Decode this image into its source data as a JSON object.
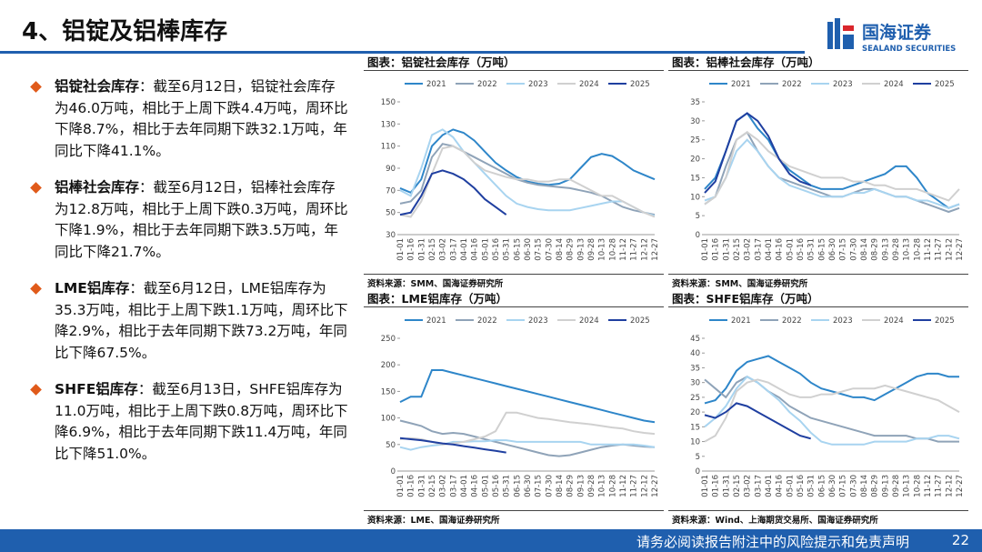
{
  "header": {
    "title": "4、铝锭及铝棒库存",
    "logo_cn": "国海证券",
    "logo_en": "SEALAND SECURITIES"
  },
  "bullets": [
    {
      "head": "铝锭社会库存",
      "body": "：截至6月12日，铝锭社会库存为46.0万吨，相比于上周下跌4.4万吨，周环比下降8.7%，相比于去年同期下跌32.1万吨，年同比下降41.1%。"
    },
    {
      "head": "铝棒社会库存",
      "body": "：截至6月12日，铝棒社会库存为12.8万吨，相比于上周下跌0.3万吨，周环比下降1.9%，相比于去年同期下跌3.5万吨，年同比下降21.7%。"
    },
    {
      "head": "LME铝库存",
      "body": "：截至6月12日，LME铝库存为35.3万吨，相比于上周下跌1.1万吨，周环比下降2.9%，相比于去年同期下跌73.2万吨，年同比下降67.5%。"
    },
    {
      "head": "SHFE铝库存",
      "body": "：截至6月13日，SHFE铝库存为11.0万吨，相比于上周下跌0.8万吨，周环比下降6.9%，相比于去年同期下跌11.4万吨，年同比下降51.0%。"
    }
  ],
  "footer": {
    "notice": "请务必阅读报告附注中的风险提示和免责声明",
    "page": "22"
  },
  "chart_data": [
    {
      "type": "line",
      "title": "图表：铝锭社会库存（万吨）",
      "source": "资料来源：SMM、国海证券研究所",
      "categories": [
        "01-01",
        "01-16",
        "01-31",
        "02-15",
        "03-02",
        "03-17",
        "04-01",
        "04-16",
        "05-01",
        "05-16",
        "05-31",
        "06-15",
        "06-30",
        "07-15",
        "07-30",
        "08-14",
        "08-29",
        "09-13",
        "09-28",
        "10-13",
        "10-28",
        "11-12",
        "11-27",
        "12-12",
        "12-27"
      ],
      "ylim": [
        30,
        150
      ],
      "yticks": [
        30,
        50,
        70,
        90,
        110,
        130,
        150
      ],
      "series": [
        {
          "name": "2021",
          "color": "#2e86c9",
          "values": [
            72,
            68,
            80,
            110,
            120,
            125,
            122,
            115,
            105,
            95,
            88,
            82,
            78,
            76,
            75,
            76,
            80,
            90,
            100,
            103,
            101,
            95,
            88,
            84,
            80
          ]
        },
        {
          "name": "2022",
          "color": "#8fa3b8",
          "values": [
            58,
            60,
            70,
            100,
            112,
            110,
            105,
            100,
            95,
            90,
            85,
            80,
            77,
            75,
            74,
            73,
            72,
            70,
            68,
            65,
            60,
            55,
            52,
            50,
            48
          ]
        },
        {
          "name": "2023",
          "color": "#a8d4f0",
          "values": [
            70,
            65,
            90,
            120,
            125,
            118,
            105,
            95,
            85,
            75,
            65,
            58,
            55,
            53,
            52,
            52,
            52,
            54,
            56,
            58,
            60,
            60,
            55,
            50,
            47
          ]
        },
        {
          "name": "2024",
          "color": "#d0d0d0",
          "values": [
            48,
            46,
            60,
            85,
            108,
            110,
            105,
            95,
            88,
            85,
            82,
            80,
            80,
            78,
            78,
            80,
            80,
            75,
            70,
            65,
            65,
            60,
            55,
            50,
            46
          ]
        },
        {
          "name": "2025",
          "color": "#1f3fa0",
          "values": [
            48,
            50,
            65,
            85,
            88,
            85,
            80,
            72,
            62,
            55,
            48,
            null,
            null,
            null,
            null,
            null,
            null,
            null,
            null,
            null,
            null,
            null,
            null,
            null,
            null
          ]
        }
      ]
    },
    {
      "type": "line",
      "title": "图表：铝棒社会库存（万吨）",
      "source": "资料来源：SMM、国海证券研究所",
      "categories": [
        "01-01",
        "01-16",
        "01-31",
        "02-15",
        "03-02",
        "03-17",
        "04-01",
        "04-16",
        "05-01",
        "05-16",
        "05-31",
        "06-15",
        "06-30",
        "07-15",
        "07-30",
        "08-14",
        "08-29",
        "09-13",
        "09-28",
        "10-13",
        "10-28",
        "11-12",
        "11-27",
        "12-12",
        "12-27"
      ],
      "ylim": [
        0,
        35
      ],
      "yticks": [
        0,
        5,
        10,
        15,
        20,
        25,
        30,
        35
      ],
      "series": [
        {
          "name": "2021",
          "color": "#2e86c9",
          "values": [
            12,
            15,
            22,
            30,
            32,
            28,
            25,
            20,
            17,
            15,
            13,
            12,
            12,
            12,
            13,
            14,
            15,
            16,
            18,
            18,
            15,
            11,
            9,
            7,
            8
          ]
        },
        {
          "name": "2022",
          "color": "#8fa3b8",
          "values": [
            8,
            10,
            18,
            25,
            27,
            22,
            18,
            15,
            14,
            13,
            12,
            11,
            10,
            10,
            11,
            12,
            12,
            11,
            10,
            10,
            9,
            8,
            7,
            6,
            7
          ]
        },
        {
          "name": "2023",
          "color": "#a8d4f0",
          "values": [
            9,
            10,
            15,
            22,
            25,
            22,
            18,
            15,
            13,
            12,
            11,
            10,
            10,
            10,
            11,
            11,
            12,
            11,
            10,
            10,
            9,
            9,
            8,
            7,
            8
          ]
        },
        {
          "name": "2024",
          "color": "#d0d0d0",
          "values": [
            8,
            10,
            15,
            25,
            27,
            25,
            22,
            20,
            18,
            17,
            16,
            15,
            15,
            15,
            14,
            14,
            13,
            13,
            12,
            12,
            12,
            11,
            10,
            9,
            12
          ]
        },
        {
          "name": "2025",
          "color": "#1f3fa0",
          "values": [
            11,
            14,
            22,
            30,
            32,
            30,
            26,
            20,
            16,
            14,
            13,
            null,
            null,
            null,
            null,
            null,
            null,
            null,
            null,
            null,
            null,
            null,
            null,
            null,
            null
          ]
        }
      ]
    },
    {
      "type": "line",
      "title": "图表：LME铝库存（万吨）",
      "source": "资料来源：LME、国海证券研究所",
      "categories": [
        "01-01",
        "01-16",
        "01-31",
        "02-15",
        "03-02",
        "03-17",
        "04-01",
        "04-16",
        "05-01",
        "05-16",
        "05-31",
        "06-15",
        "06-30",
        "07-15",
        "07-30",
        "08-14",
        "08-29",
        "09-13",
        "09-28",
        "10-13",
        "10-28",
        "11-12",
        "11-27",
        "12-12",
        "12-27"
      ],
      "ylim": [
        0,
        250
      ],
      "yticks": [
        0,
        50,
        100,
        150,
        200,
        250
      ],
      "series": [
        {
          "name": "2021",
          "color": "#2e86c9",
          "values": [
            130,
            140,
            140,
            190,
            190,
            185,
            180,
            175,
            170,
            165,
            160,
            155,
            150,
            145,
            140,
            135,
            130,
            125,
            120,
            115,
            110,
            105,
            100,
            95,
            92
          ]
        },
        {
          "name": "2022",
          "color": "#8fa3b8",
          "values": [
            95,
            90,
            85,
            75,
            70,
            72,
            70,
            65,
            60,
            55,
            50,
            45,
            40,
            35,
            30,
            28,
            30,
            35,
            40,
            45,
            48,
            50,
            48,
            46,
            45
          ]
        },
        {
          "name": "2023",
          "color": "#a8d4f0",
          "values": [
            45,
            40,
            45,
            48,
            50,
            55,
            55,
            56,
            56,
            58,
            58,
            55,
            55,
            55,
            55,
            55,
            55,
            55,
            50,
            50,
            50,
            50,
            50,
            48,
            45
          ]
        },
        {
          "name": "2024",
          "color": "#d0d0d0",
          "values": [
            60,
            62,
            60,
            55,
            50,
            52,
            55,
            60,
            65,
            75,
            110,
            110,
            105,
            100,
            98,
            95,
            92,
            90,
            88,
            85,
            82,
            80,
            75,
            72,
            70
          ]
        },
        {
          "name": "2025",
          "color": "#1f3fa0",
          "values": [
            62,
            60,
            58,
            55,
            52,
            50,
            47,
            44,
            41,
            38,
            35,
            null,
            null,
            null,
            null,
            null,
            null,
            null,
            null,
            null,
            null,
            null,
            null,
            null,
            null
          ]
        }
      ]
    },
    {
      "type": "line",
      "title": "图表：SHFE铝库存（万吨）",
      "source": "资料来源：Wind、上海期货交易所、国海证券研究所",
      "categories": [
        "01-01",
        "01-16",
        "01-31",
        "02-15",
        "03-02",
        "03-17",
        "04-01",
        "04-16",
        "05-01",
        "05-16",
        "05-31",
        "06-15",
        "06-30",
        "07-15",
        "07-30",
        "08-14",
        "08-29",
        "09-13",
        "09-28",
        "10-13",
        "10-28",
        "11-12",
        "11-27",
        "12-12",
        "12-27"
      ],
      "ylim": [
        0,
        45
      ],
      "yticks": [
        0,
        5,
        10,
        15,
        20,
        25,
        30,
        35,
        40,
        45
      ],
      "series": [
        {
          "name": "2021",
          "color": "#2e86c9",
          "values": [
            23,
            24,
            28,
            34,
            37,
            38,
            39,
            37,
            35,
            33,
            30,
            28,
            27,
            26,
            25,
            25,
            24,
            26,
            28,
            30,
            32,
            33,
            33,
            32,
            32
          ]
        },
        {
          "name": "2022",
          "color": "#8fa3b8",
          "values": [
            31,
            28,
            25,
            30,
            32,
            30,
            27,
            25,
            22,
            20,
            18,
            17,
            16,
            15,
            14,
            13,
            12,
            12,
            12,
            12,
            11,
            11,
            10,
            10,
            10
          ]
        },
        {
          "name": "2023",
          "color": "#a8d4f0",
          "values": [
            15,
            18,
            22,
            28,
            32,
            30,
            27,
            24,
            20,
            17,
            13,
            10,
            9,
            9,
            9,
            9,
            10,
            10,
            10,
            10,
            11,
            11,
            12,
            12,
            11
          ]
        },
        {
          "name": "2024",
          "color": "#d0d0d0",
          "values": [
            10,
            12,
            18,
            27,
            30,
            31,
            30,
            28,
            26,
            25,
            25,
            26,
            26,
            27,
            28,
            28,
            28,
            29,
            28,
            27,
            26,
            25,
            24,
            22,
            20
          ]
        },
        {
          "name": "2025",
          "color": "#1f3fa0",
          "values": [
            19,
            18,
            20,
            23,
            22,
            20,
            18,
            16,
            14,
            12,
            11,
            null,
            null,
            null,
            null,
            null,
            null,
            null,
            null,
            null,
            null,
            null,
            null,
            null,
            null
          ]
        }
      ]
    }
  ]
}
